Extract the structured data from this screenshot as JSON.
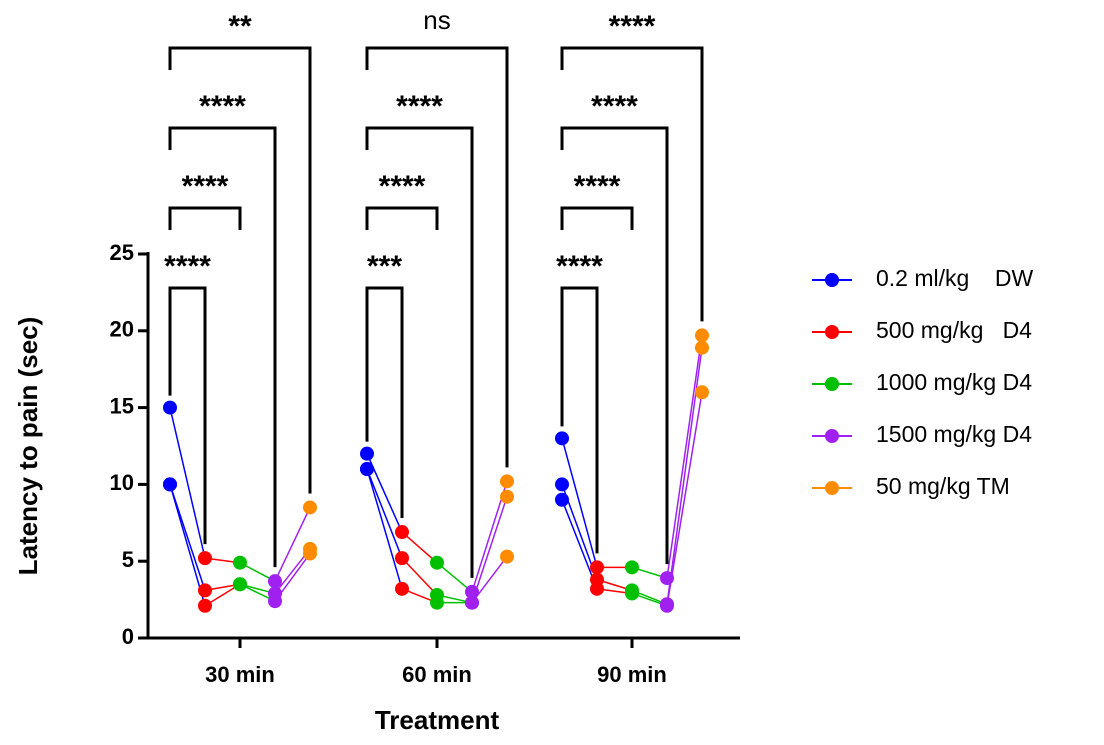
{
  "chart_data": {
    "type": "dot-line",
    "x_label": "Treatment",
    "y_label": "Latency to pain (sec)",
    "categories": [
      "30 min",
      "60 min",
      "90 min"
    ],
    "ylim": [
      0,
      25
    ],
    "yticks": [
      0,
      5,
      10,
      15,
      20,
      25
    ],
    "series": [
      {
        "name": "0.2 ml/kg    DW",
        "color": "#0000ff",
        "values": [
          [
            15,
            10,
            10
          ],
          [
            12,
            11,
            11
          ],
          [
            13,
            10,
            9
          ]
        ]
      },
      {
        "name": "500 mg/kg   D4",
        "color": "#ff0000",
        "values": [
          [
            5.2,
            3.1,
            2.1
          ],
          [
            6.9,
            5.2,
            3.2
          ],
          [
            4.6,
            3.8,
            3.2
          ]
        ]
      },
      {
        "name": "1000 mg/kg D4",
        "color": "#00c000",
        "values": [
          [
            4.9,
            3.5,
            3.5
          ],
          [
            4.9,
            2.8,
            2.3
          ],
          [
            4.6,
            3.1,
            2.9
          ]
        ]
      },
      {
        "name": "1500 mg/kg D4",
        "color": "#a020f0",
        "values": [
          [
            3.7,
            2.9,
            2.4
          ],
          [
            3.0,
            2.3,
            2.3
          ],
          [
            3.9,
            2.2,
            2.1
          ]
        ]
      },
      {
        "name": "50 mg/kg TM",
        "color": "#ff8c00",
        "values": [
          [
            8.5,
            5.8,
            5.5
          ],
          [
            10.2,
            9.2,
            5.3
          ],
          [
            19.7,
            18.9,
            16
          ]
        ]
      }
    ],
    "significance": [
      [
        "****",
        "****",
        "****",
        "**"
      ],
      [
        "***",
        "****",
        "****",
        "ns"
      ],
      [
        "****",
        "****",
        "****",
        "****"
      ]
    ]
  }
}
